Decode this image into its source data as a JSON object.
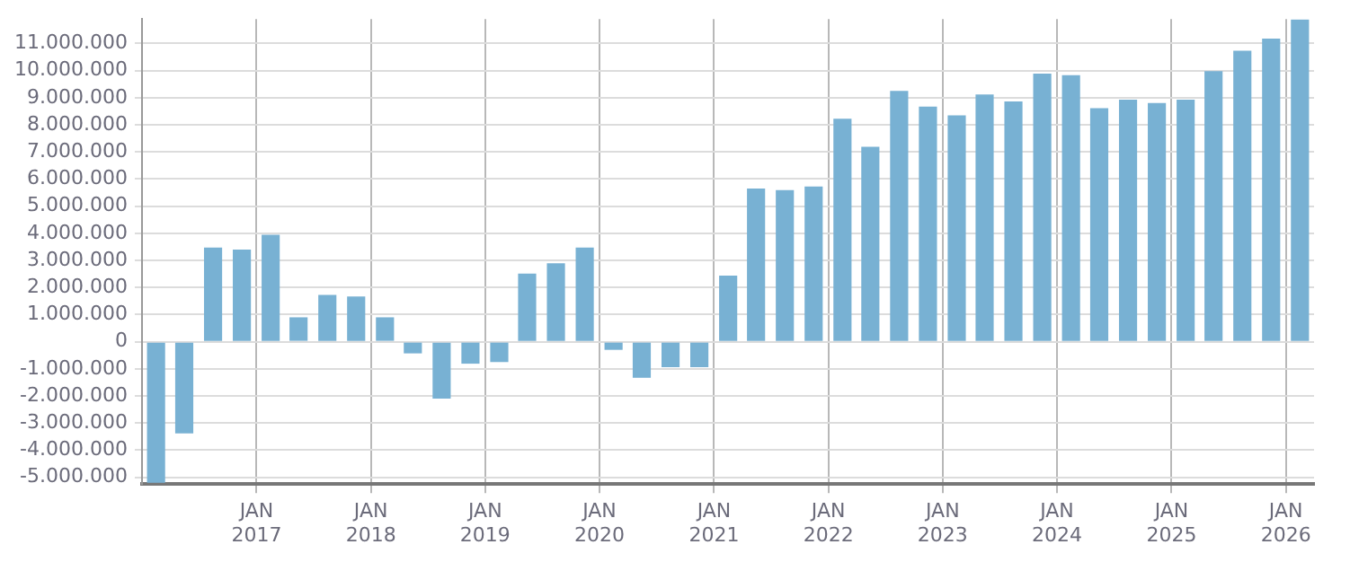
{
  "chart_data": {
    "type": "bar",
    "x": [
      "2016-02-15",
      "2016-05-15",
      "2016-08-15",
      "2016-11-15",
      "2017-02-15",
      "2017-05-15",
      "2017-08-15",
      "2017-11-15",
      "2018-02-15",
      "2018-05-15",
      "2018-08-15",
      "2018-11-15",
      "2019-02-15",
      "2019-05-15",
      "2019-08-15",
      "2019-11-15",
      "2020-02-15",
      "2020-05-15",
      "2020-08-15",
      "2020-11-15",
      "2021-02-15",
      "2021-05-15",
      "2021-08-15",
      "2021-11-15",
      "2022-02-15",
      "2022-05-15",
      "2022-08-15",
      "2022-11-15",
      "2023-02-15",
      "2023-05-15",
      "2023-08-15",
      "2023-11-15",
      "2024-02-15",
      "2024-05-15",
      "2024-08-15",
      "2024-11-15",
      "2025-02-15",
      "2025-05-15",
      "2025-08-15",
      "2025-11-15",
      "2026-02-15"
    ],
    "values": [
      -5200000,
      -3380000,
      3470000,
      3400000,
      3940000,
      900000,
      1730000,
      1670000,
      900000,
      -430000,
      -2100000,
      -810000,
      -750000,
      2510000,
      2890000,
      3470000,
      -300000,
      -1330000,
      -940000,
      -940000,
      2440000,
      5650000,
      5590000,
      5720000,
      8220000,
      7190000,
      9250000,
      8670000,
      8350000,
      9120000,
      8860000,
      9890000,
      9830000,
      8610000,
      8930000,
      8800000,
      8930000,
      9980000,
      10730000,
      11180000,
      11880000
    ],
    "color": "#78b1d3",
    "xlim": [
      "2016-01-01",
      "2026-04-01"
    ],
    "xticks": [
      {
        "value": "2017-01-01",
        "label": "JAN 2017"
      },
      {
        "value": "2018-01-01",
        "label": "JAN 2018"
      },
      {
        "value": "2019-01-01",
        "label": "JAN 2019"
      },
      {
        "value": "2020-01-01",
        "label": "JAN 2020"
      },
      {
        "value": "2021-01-01",
        "label": "JAN 2021"
      },
      {
        "value": "2022-01-01",
        "label": "JAN 2022"
      },
      {
        "value": "2023-01-01",
        "label": "JAN 2023"
      },
      {
        "value": "2024-01-01",
        "label": "JAN 2024"
      },
      {
        "value": "2025-01-01",
        "label": "JAN 2025"
      },
      {
        "value": "2026-01-01",
        "label": "JAN 2026"
      }
    ],
    "ylim": [
      -5250000,
      11900000
    ],
    "yticks": [
      {
        "value": -5000000,
        "label": "-5.000.000"
      },
      {
        "value": -4000000,
        "label": "-4.000.000"
      },
      {
        "value": -3000000,
        "label": "-3.000.000"
      },
      {
        "value": -2000000,
        "label": "-2.000.000"
      },
      {
        "value": -1000000,
        "label": "-1.000.000"
      },
      0,
      {
        "value": 1000000,
        "label": "1.000.000"
      },
      {
        "value": 2000000,
        "label": "2.000.000"
      },
      {
        "value": 3000000,
        "label": "3.000.000"
      },
      {
        "value": 4000000,
        "label": "4.000.000"
      },
      {
        "value": 5000000,
        "label": "5.000.000"
      },
      {
        "value": 6000000,
        "label": "6.000.000"
      },
      {
        "value": 7000000,
        "label": "7.000.000"
      },
      {
        "value": 8000000,
        "label": "8.000.000"
      },
      {
        "value": 9000000,
        "label": "9.000.000"
      },
      {
        "value": 10000000,
        "label": "10.000.000"
      },
      {
        "value": 11000000,
        "label": "11.000.000"
      }
    ],
    "grid": true,
    "legend": false
  }
}
